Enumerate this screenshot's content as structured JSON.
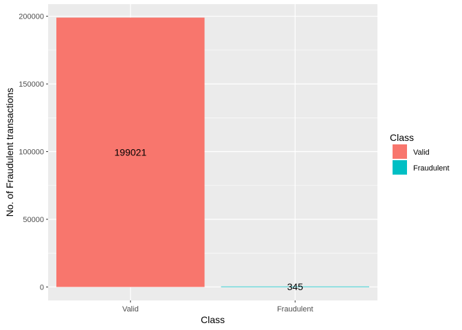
{
  "chart_data": {
    "type": "bar",
    "categories": [
      "Valid",
      "Fraudulent"
    ],
    "values": [
      199021,
      345
    ],
    "data_labels": [
      "199021",
      "345"
    ],
    "xlabel": "Class",
    "ylabel": "No. of Fraudulent transactions",
    "ylim": [
      -9951,
      208972
    ],
    "yticks": [
      0,
      50000,
      100000,
      150000,
      200000
    ],
    "ytick_labels": [
      "0",
      "50000",
      "100000",
      "150000",
      "200000"
    ],
    "grid": true,
    "legend": {
      "title": "Class",
      "position": "right",
      "entries": [
        {
          "label": "Valid",
          "color": "#F8766D"
        },
        {
          "label": "Fraudulent",
          "color": "#00BFC4"
        }
      ]
    },
    "colors": [
      "#F8766D",
      "#00BFC4"
    ],
    "panel_background": "#EBEBEB",
    "gridline_color": "#FFFFFF"
  }
}
